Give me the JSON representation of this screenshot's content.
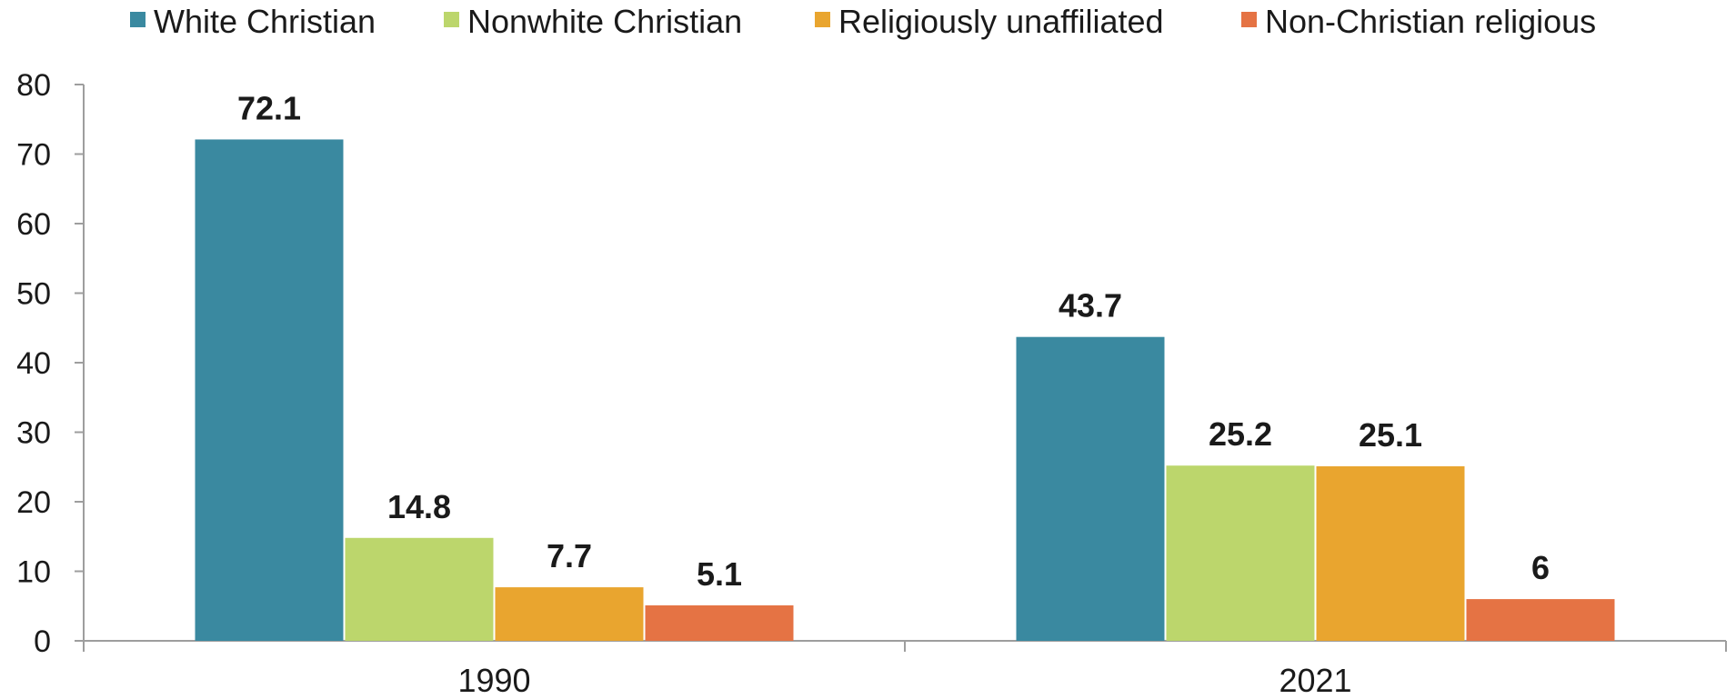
{
  "chart_data": {
    "type": "bar",
    "categories": [
      "1990",
      "2021"
    ],
    "series": [
      {
        "name": "White Christian",
        "values": [
          72.1,
          43.7
        ],
        "labels": [
          "72.1",
          "43.7"
        ],
        "color": "#3a89a0"
      },
      {
        "name": "Nonwhite Christian",
        "values": [
          14.8,
          25.2
        ],
        "labels": [
          "14.8",
          "25.2"
        ],
        "color": "#bcd66c"
      },
      {
        "name": "Religiously unaffiliated",
        "values": [
          7.7,
          25.1
        ],
        "labels": [
          "7.7",
          "25.1"
        ],
        "color": "#e9a52f"
      },
      {
        "name": "Non-Christian religious",
        "values": [
          5.1,
          6
        ],
        "labels": [
          "5.1",
          "6"
        ],
        "color": "#e57344"
      }
    ],
    "yticks": [
      "0",
      "10",
      "20",
      "30",
      "40",
      "50",
      "60",
      "70",
      "80"
    ],
    "ylim": [
      0,
      80
    ],
    "title": "",
    "xlabel": "",
    "ylabel": "",
    "legend_position": "top",
    "grid": false
  }
}
